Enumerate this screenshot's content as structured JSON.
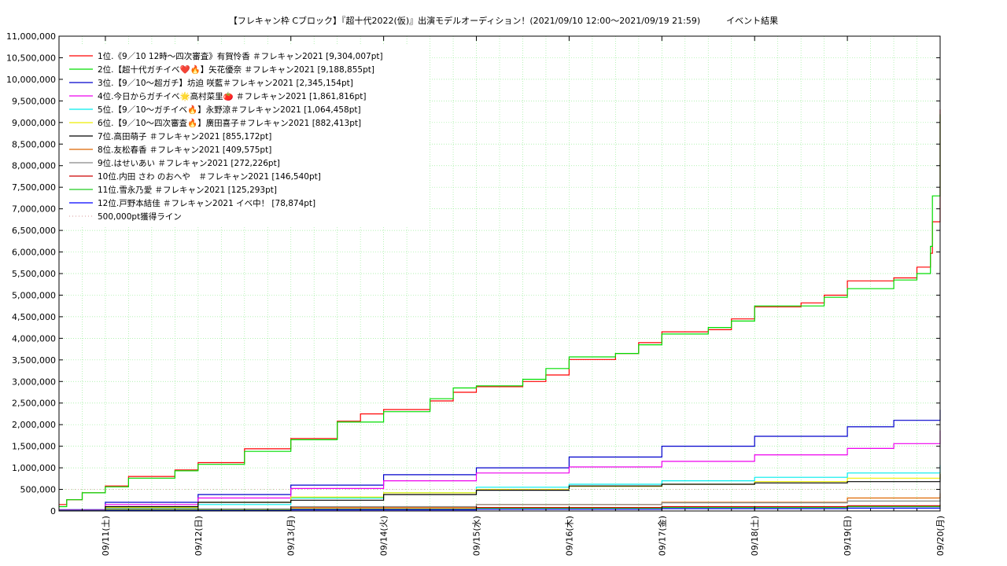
{
  "chart_data": {
    "type": "line",
    "title": "【フレキャン枠 Cブロック】『超十代2022(仮)』出演モデルオーディション！(2021/09/10 12:00〜2021/09/19 21:59)　　　イベント結果",
    "xlabel": "",
    "ylabel": "",
    "ylim": [
      0,
      11000000
    ],
    "yticks": [
      0,
      500000,
      1000000,
      1500000,
      2000000,
      2500000,
      3000000,
      3500000,
      4000000,
      4500000,
      5000000,
      5500000,
      6000000,
      6500000,
      7000000,
      7500000,
      8000000,
      8500000,
      9000000,
      9500000,
      10000000,
      10500000,
      11000000
    ],
    "ytick_labels": [
      "0",
      "500,000",
      "1,000,000",
      "1,500,000",
      "2,000,000",
      "2,500,000",
      "3,000,000",
      "3,500,000",
      "4,000,000",
      "4,500,000",
      "5,000,000",
      "5,500,000",
      "6,000,000",
      "6,500,000",
      "7,000,000",
      "7,500,000",
      "8,000,000",
      "8,500,000",
      "9,000,000",
      "9,500,000",
      "10,000,000",
      "10,500,000",
      "11,000,000"
    ],
    "xlim": [
      "2021-09-10T12:00",
      "2021-09-20T00:00"
    ],
    "xticks": [
      "2021-09-11T00:00",
      "2021-09-12T00:00",
      "2021-09-13T00:00",
      "2021-09-14T00:00",
      "2021-09-15T00:00",
      "2021-09-16T00:00",
      "2021-09-17T00:00",
      "2021-09-18T00:00",
      "2021-09-19T00:00",
      "2021-09-20T00:00"
    ],
    "xtick_labels": [
      "09/11(土)",
      "09/12(日)",
      "09/13(月)",
      "09/14(火)",
      "09/15(水)",
      "09/16(木)",
      "09/17(金)",
      "09/18(土)",
      "09/19(日)",
      "09/20(月)"
    ],
    "grid": true,
    "legend_position": "top-left",
    "series": [
      {
        "name": "1位.《9／10 12時〜四次審査》有賀怜香 ＃フレキャン2021 [9,304,007pt]",
        "color": "#ff0000",
        "x": [
          "2021-09-10T12:00",
          "2021-09-10T14:00",
          "2021-09-10T18:00",
          "2021-09-11T00:00",
          "2021-09-11T06:00",
          "2021-09-11T12:00",
          "2021-09-11T18:00",
          "2021-09-12T00:00",
          "2021-09-12T12:00",
          "2021-09-12T18:00",
          "2021-09-13T00:00",
          "2021-09-13T12:00",
          "2021-09-13T18:00",
          "2021-09-14T00:00",
          "2021-09-14T12:00",
          "2021-09-14T18:00",
          "2021-09-15T00:00",
          "2021-09-15T12:00",
          "2021-09-15T18:00",
          "2021-09-16T00:00",
          "2021-09-16T12:00",
          "2021-09-16T18:00",
          "2021-09-17T00:00",
          "2021-09-17T12:00",
          "2021-09-17T18:00",
          "2021-09-18T00:00",
          "2021-09-18T12:00",
          "2021-09-18T18:00",
          "2021-09-19T00:00",
          "2021-09-19T12:00",
          "2021-09-19T18:00",
          "2021-09-19T21:30",
          "2021-09-19T22:00",
          "2021-09-20T00:00"
        ],
        "y": [
          150000,
          260000,
          420000,
          580000,
          800000,
          800000,
          950000,
          1120000,
          1440000,
          1440000,
          1680000,
          2080000,
          2250000,
          2350000,
          2550000,
          2750000,
          2880000,
          3000000,
          3150000,
          3510000,
          3650000,
          3900000,
          4150000,
          4200000,
          4450000,
          4730000,
          4820000,
          5000000,
          5330000,
          5400000,
          5650000,
          5970000,
          6700000,
          9304007
        ]
      },
      {
        "name": "2位.【超十代ガチイベ❤️🔥】矢花優奈 ＃フレキャン2021 [9,188,855pt]",
        "color": "#00dd00",
        "x": [
          "2021-09-10T12:00",
          "2021-09-10T14:00",
          "2021-09-10T18:00",
          "2021-09-11T00:00",
          "2021-09-11T06:00",
          "2021-09-11T12:00",
          "2021-09-11T18:00",
          "2021-09-12T00:00",
          "2021-09-12T12:00",
          "2021-09-12T18:00",
          "2021-09-13T00:00",
          "2021-09-13T12:00",
          "2021-09-13T18:00",
          "2021-09-14T00:00",
          "2021-09-14T12:00",
          "2021-09-14T18:00",
          "2021-09-15T00:00",
          "2021-09-15T12:00",
          "2021-09-15T18:00",
          "2021-09-16T00:00",
          "2021-09-16T12:00",
          "2021-09-16T18:00",
          "2021-09-17T00:00",
          "2021-09-17T12:00",
          "2021-09-17T18:00",
          "2021-09-18T00:00",
          "2021-09-18T12:00",
          "2021-09-18T18:00",
          "2021-09-19T00:00",
          "2021-09-19T12:00",
          "2021-09-19T18:00",
          "2021-09-19T21:30",
          "2021-09-19T22:00",
          "2021-09-20T00:00"
        ],
        "y": [
          100000,
          260000,
          420000,
          560000,
          760000,
          760000,
          930000,
          1080000,
          1380000,
          1380000,
          1650000,
          2060000,
          2060000,
          2300000,
          2600000,
          2850000,
          2900000,
          3050000,
          3300000,
          3570000,
          3650000,
          3850000,
          4100000,
          4250000,
          4400000,
          4750000,
          4750000,
          4950000,
          5150000,
          5350000,
          5500000,
          6130000,
          7300000,
          9188855
        ]
      },
      {
        "name": "3位.【9／10〜超ガチ】坊迫 咲藍＃フレキャン2021 [2,345,154pt]",
        "color": "#0000cc",
        "x": [
          "2021-09-10T12:00",
          "2021-09-11T00:00",
          "2021-09-12T00:00",
          "2021-09-13T00:00",
          "2021-09-14T00:00",
          "2021-09-15T00:00",
          "2021-09-16T00:00",
          "2021-09-17T00:00",
          "2021-09-18T00:00",
          "2021-09-19T00:00",
          "2021-09-19T12:00",
          "2021-09-20T00:00"
        ],
        "y": [
          30000,
          200000,
          380000,
          600000,
          840000,
          1000000,
          1250000,
          1500000,
          1730000,
          1950000,
          2100000,
          2345154
        ]
      },
      {
        "name": "4位.今日からガチイベ🌟高村菜里🍅 ＃フレキャン2021 [1,861,816pt]",
        "color": "#ee00ee",
        "x": [
          "2021-09-10T12:00",
          "2021-09-11T00:00",
          "2021-09-12T00:00",
          "2021-09-13T00:00",
          "2021-09-14T00:00",
          "2021-09-15T00:00",
          "2021-09-16T00:00",
          "2021-09-17T00:00",
          "2021-09-18T00:00",
          "2021-09-19T00:00",
          "2021-09-19T12:00",
          "2021-09-20T00:00"
        ],
        "y": [
          20000,
          150000,
          300000,
          520000,
          700000,
          880000,
          1020000,
          1150000,
          1300000,
          1450000,
          1560000,
          1861816
        ]
      },
      {
        "name": "5位.【9／10〜ガチイベ🔥】永野涼＃フレキャン2021 [1,064,458pt]",
        "color": "#00eeee",
        "x": [
          "2021-09-10T12:00",
          "2021-09-11T00:00",
          "2021-09-12T00:00",
          "2021-09-13T00:00",
          "2021-09-14T00:00",
          "2021-09-15T00:00",
          "2021-09-16T00:00",
          "2021-09-17T00:00",
          "2021-09-18T00:00",
          "2021-09-19T00:00",
          "2021-09-20T00:00"
        ],
        "y": [
          10000,
          60000,
          150000,
          300000,
          420000,
          550000,
          620000,
          700000,
          780000,
          880000,
          1064458
        ]
      },
      {
        "name": "6位.【9／10〜四次審査🔥】廣田喜子＃フレキャン2021 [882,413pt]",
        "color": "#eeee00",
        "x": [
          "2021-09-10T12:00",
          "2021-09-11T00:00",
          "2021-09-12T00:00",
          "2021-09-13T00:00",
          "2021-09-14T00:00",
          "2021-09-15T00:00",
          "2021-09-16T00:00",
          "2021-09-17T00:00",
          "2021-09-18T00:00",
          "2021-09-19T00:00",
          "2021-09-20T00:00"
        ],
        "y": [
          10000,
          80000,
          200000,
          320000,
          420000,
          500000,
          570000,
          620000,
          680000,
          760000,
          882413
        ]
      },
      {
        "name": "7位.高田萌子 ＃フレキャン2021 [855,172pt]",
        "color": "#000000",
        "x": [
          "2021-09-10T12:00",
          "2021-09-11T00:00",
          "2021-09-12T00:00",
          "2021-09-13T00:00",
          "2021-09-14T00:00",
          "2021-09-15T00:00",
          "2021-09-16T00:00",
          "2021-09-17T00:00",
          "2021-09-18T00:00",
          "2021-09-19T00:00",
          "2021-09-20T00:00"
        ],
        "y": [
          10000,
          100000,
          200000,
          250000,
          380000,
          480000,
          580000,
          620000,
          650000,
          680000,
          855172
        ]
      },
      {
        "name": "8位.友松春香 ＃フレキャン2021 [409,575pt]",
        "color": "#dd6600",
        "x": [
          "2021-09-10T12:00",
          "2021-09-11T00:00",
          "2021-09-13T00:00",
          "2021-09-15T00:00",
          "2021-09-17T00:00",
          "2021-09-19T00:00",
          "2021-09-20T00:00"
        ],
        "y": [
          5000,
          30000,
          80000,
          150000,
          200000,
          300000,
          409575
        ]
      },
      {
        "name": "9位.はせいあい ＃フレキャン2021 [272,226pt]",
        "color": "#888888",
        "x": [
          "2021-09-10T12:00",
          "2021-09-11T00:00",
          "2021-09-13T00:00",
          "2021-09-15T00:00",
          "2021-09-17T00:00",
          "2021-09-19T00:00",
          "2021-09-20T00:00"
        ],
        "y": [
          5000,
          50000,
          100000,
          150000,
          190000,
          230000,
          272226
        ]
      },
      {
        "name": "10位.内田 さわ のおへや　＃フレキャン2021 [146,540pt]",
        "color": "#cc0000",
        "x": [
          "2021-09-10T12:00",
          "2021-09-11T00:00",
          "2021-09-13T00:00",
          "2021-09-15T00:00",
          "2021-09-17T00:00",
          "2021-09-19T00:00",
          "2021-09-20T00:00"
        ],
        "y": [
          5000,
          20000,
          50000,
          80000,
          100000,
          120000,
          146540
        ]
      },
      {
        "name": "11位.雪永乃愛 ＃フレキャン2021 [125,293pt]",
        "color": "#22cc22",
        "x": [
          "2021-09-10T12:00",
          "2021-09-11T00:00",
          "2021-09-13T00:00",
          "2021-09-15T00:00",
          "2021-09-17T00:00",
          "2021-09-19T00:00",
          "2021-09-20T00:00"
        ],
        "y": [
          5000,
          20000,
          40000,
          60000,
          80000,
          100000,
          125293
        ]
      },
      {
        "name": "12位.戸野本結佳 ＃フレキャン2021 イベ中！ [78,874pt]",
        "color": "#0000ff",
        "x": [
          "2021-09-10T12:00",
          "2021-09-11T00:00",
          "2021-09-13T00:00",
          "2021-09-15T00:00",
          "2021-09-17T00:00",
          "2021-09-19T00:00",
          "2021-09-20T00:00"
        ],
        "y": [
          2000,
          10000,
          25000,
          40000,
          55000,
          65000,
          78874
        ]
      },
      {
        "name": "500,000pt獲得ライン",
        "color": "#ddaaaa",
        "dash": "dotted",
        "x": [
          "2021-09-10T12:00",
          "2021-09-20T00:00"
        ],
        "y": [
          500000,
          500000
        ]
      }
    ]
  }
}
